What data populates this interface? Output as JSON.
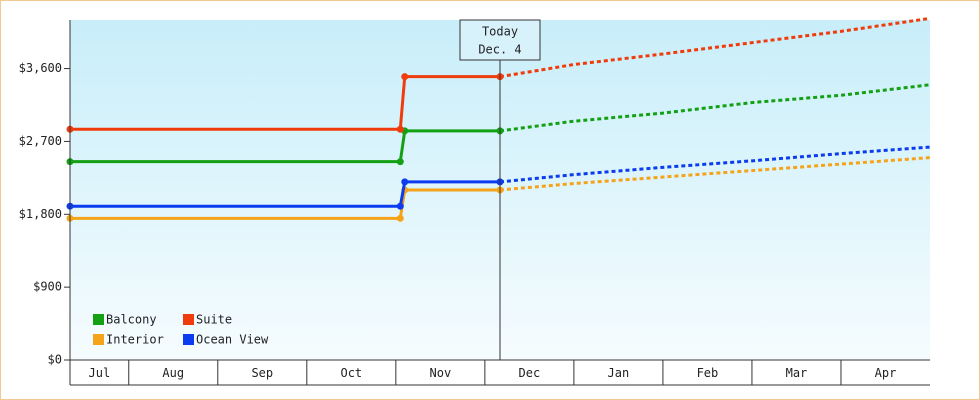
{
  "chart_data": {
    "type": "line",
    "categories": [
      "Jul",
      "Aug",
      "Sep",
      "Oct",
      "Nov",
      "Dec",
      "Jan",
      "Feb",
      "Mar",
      "Apr"
    ],
    "xlim": [
      0.34,
      10
    ],
    "xticks": [
      1,
      2,
      3,
      4,
      5,
      6,
      7,
      8,
      9
    ],
    "ylim": [
      0,
      4200
    ],
    "yticks": [
      {
        "value": 0,
        "label": "$0"
      },
      {
        "value": 900,
        "label": "$900"
      },
      {
        "value": 1800,
        "label": "$1,800"
      },
      {
        "value": 2700,
        "label": "$2,700"
      },
      {
        "value": 3600,
        "label": "$3,600"
      }
    ],
    "today": {
      "x": 5.17,
      "label": "Today",
      "date": "Dec. 4"
    },
    "x": [
      0.34,
      4.05,
      4.1,
      5.17
    ],
    "forecast_x": [
      5.17,
      6,
      7,
      8,
      9,
      10
    ],
    "series": [
      {
        "name": "Balcony",
        "color": "#13a013",
        "values": [
          2450,
          2450,
          2830,
          2830
        ],
        "forecast_values": [
          2830,
          2950,
          3050,
          3180,
          3270,
          3400
        ]
      },
      {
        "name": "Suite",
        "color": "#f03c0c",
        "values": [
          2850,
          2850,
          3500,
          3500
        ],
        "forecast_values": [
          3500,
          3650,
          3780,
          3920,
          4060,
          4220
        ]
      },
      {
        "name": "Interior",
        "color": "#f5a419",
        "values": [
          1750,
          1750,
          2100,
          2100
        ],
        "forecast_values": [
          2100,
          2180,
          2260,
          2340,
          2420,
          2500
        ]
      },
      {
        "name": "Ocean View",
        "color": "#0c3cf0",
        "values": [
          1900,
          1900,
          2200,
          2200
        ],
        "forecast_values": [
          2200,
          2290,
          2380,
          2460,
          2550,
          2630
        ]
      }
    ]
  }
}
